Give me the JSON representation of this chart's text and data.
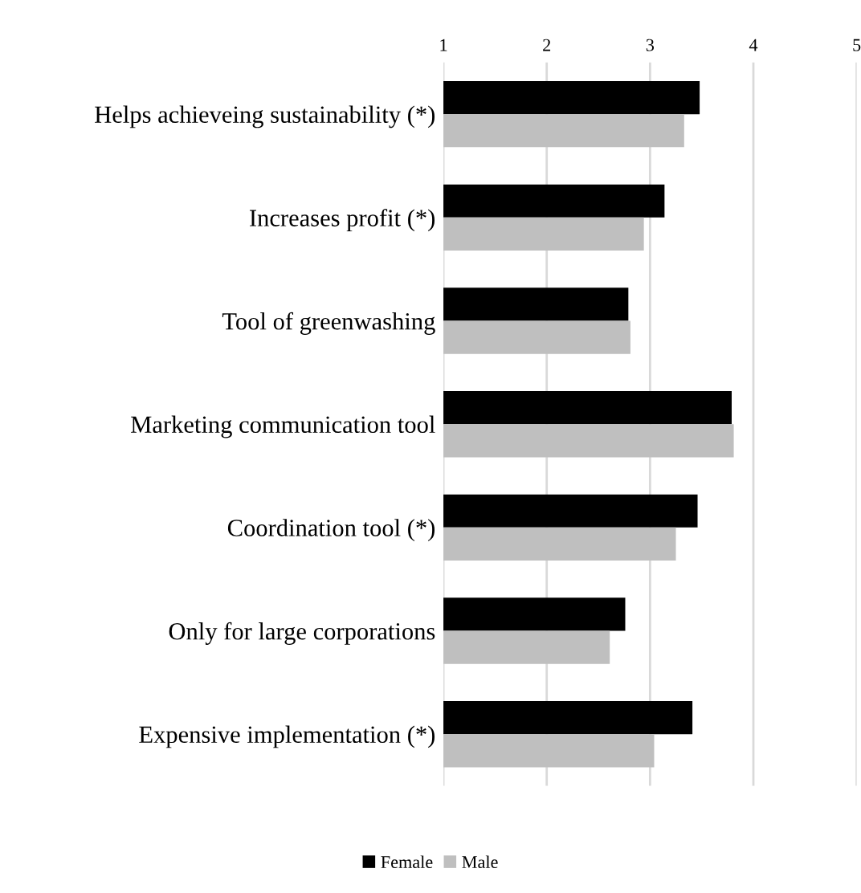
{
  "chart_data": {
    "type": "bar",
    "orientation": "horizontal",
    "categories": [
      "Helps achieveing sustainability (*)",
      "Increases profit (*)",
      "Tool of greenwashing",
      "Marketing communication tool",
      "Coordination tool (*)",
      "Only for large corporations",
      "Expensive implementation (*)"
    ],
    "series": [
      {
        "name": "Female",
        "color": "#000000",
        "values": [
          3.48,
          3.14,
          2.79,
          3.79,
          3.46,
          2.76,
          3.41
        ]
      },
      {
        "name": "Male",
        "color": "#bfbfbf",
        "values": [
          3.33,
          2.94,
          2.81,
          3.81,
          3.25,
          2.61,
          3.04
        ]
      }
    ],
    "xlim": [
      1,
      5
    ],
    "xticks": [
      1,
      2,
      3,
      4,
      5
    ],
    "grid": "x",
    "legend": "bottom"
  }
}
